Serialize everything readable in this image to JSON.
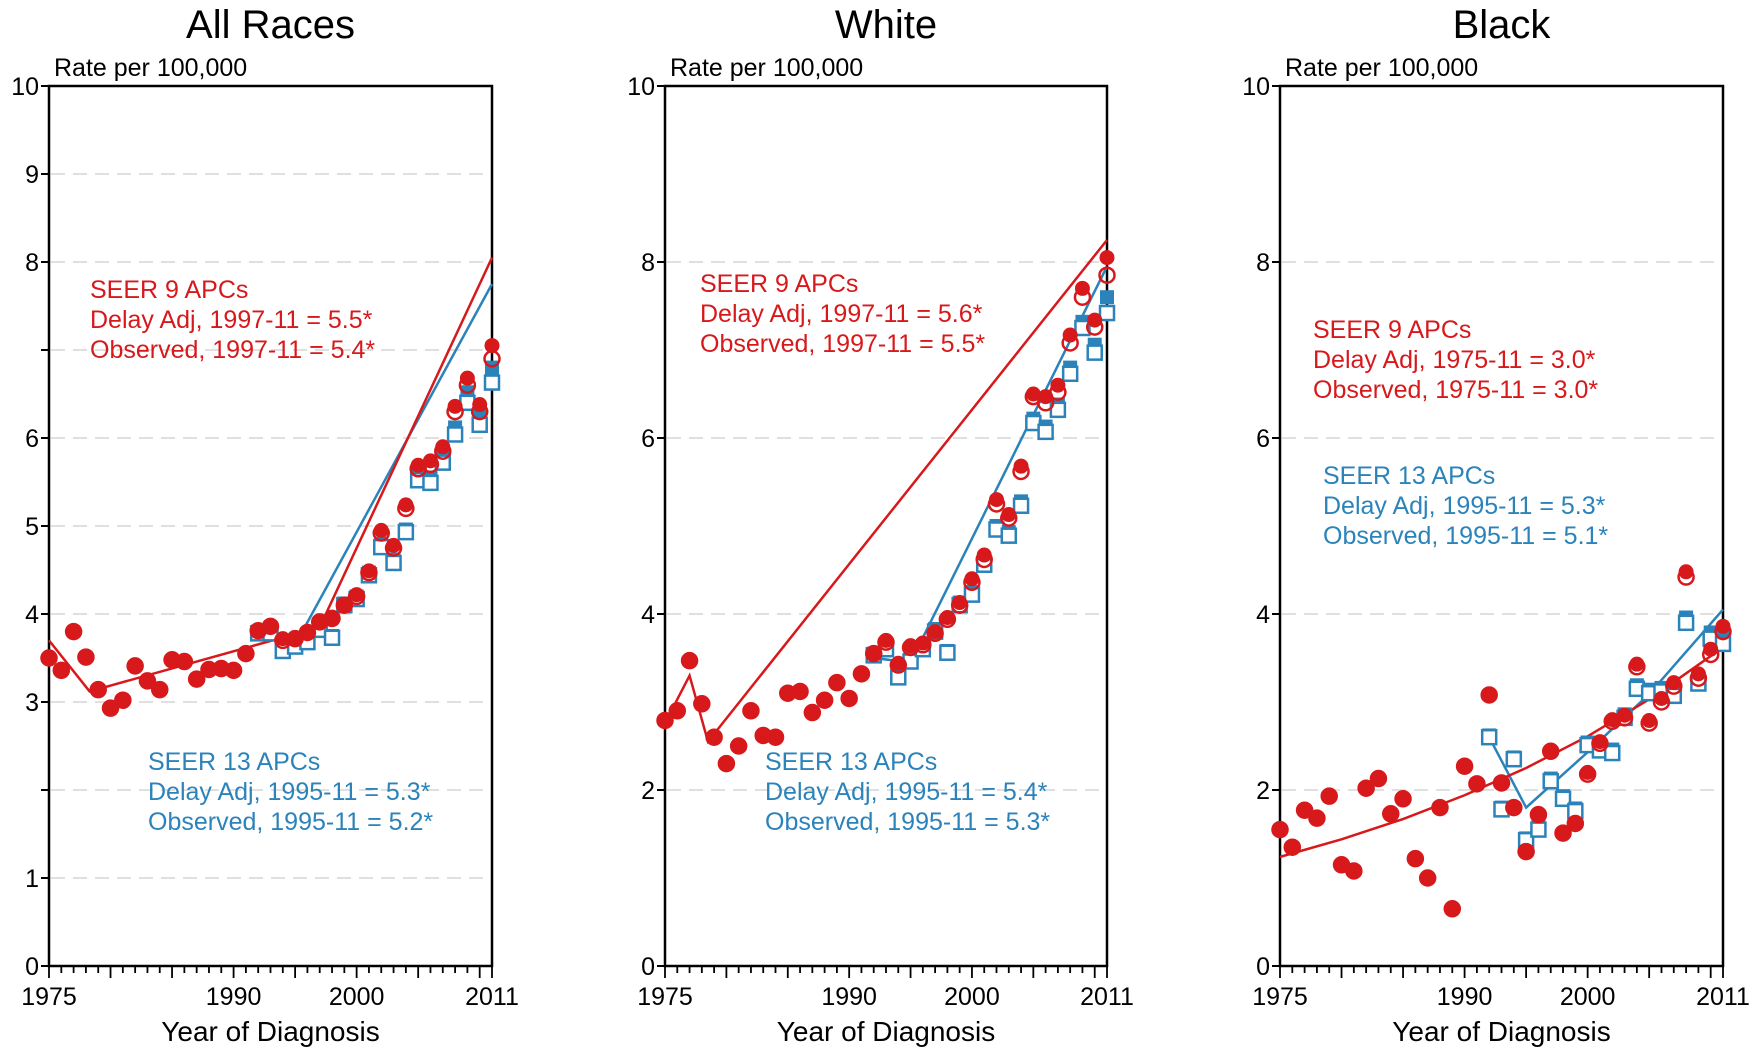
{
  "colors": {
    "seer9": "#d7191c",
    "seer13": "#2b83ba",
    "axis": "#000000",
    "grid": "#e0e0e0"
  },
  "chart_data": [
    {
      "type": "scatter",
      "title": "All Races",
      "ylabel": "Rate per 100,000",
      "xlabel": "Year of Diagnosis",
      "xlim": [
        1975,
        2011
      ],
      "ylim": [
        0,
        10
      ],
      "xticks": [
        1975,
        1990,
        2000,
        2011
      ],
      "yticks": [
        0,
        1,
        2,
        3,
        4,
        5,
        6,
        7,
        8,
        9,
        10
      ],
      "ytick_labels": [
        "0",
        "1",
        "",
        "3",
        "4",
        "5",
        "6",
        "",
        "8",
        "9",
        "10"
      ],
      "grid": true,
      "annotations": [
        {
          "group": "seer9",
          "lines": [
            "SEER 9 APCs",
            "Delay Adj, 1997-11 = 5.5*",
            "Observed, 1997-11 = 5.4*"
          ]
        },
        {
          "group": "seer13",
          "lines": [
            "SEER 13 APCs",
            "Delay Adj, 1995-11 = 5.3*",
            "Observed, 1995-11 = 5.2*"
          ]
        }
      ],
      "seer9_x": [
        1975,
        1976,
        1977,
        1978,
        1979,
        1980,
        1981,
        1982,
        1983,
        1984,
        1985,
        1986,
        1987,
        1988,
        1989,
        1990,
        1991,
        1992,
        1993,
        1994,
        1995,
        1996,
        1997,
        1998,
        1999,
        2000,
        2001,
        2002,
        2003,
        2004,
        2005,
        2006,
        2007,
        2008,
        2009,
        2010,
        2011
      ],
      "seer9_observed": [
        3.5,
        3.36,
        3.8,
        3.51,
        3.14,
        2.93,
        3.02,
        3.41,
        3.24,
        3.14,
        3.48,
        3.46,
        3.26,
        3.37,
        3.38,
        3.36,
        3.55,
        3.81,
        3.86,
        3.7,
        3.72,
        3.79,
        3.91,
        3.95,
        4.1,
        4.2,
        4.47,
        4.92,
        4.75,
        5.2,
        5.65,
        5.7,
        5.85,
        6.3,
        6.6,
        6.3,
        6.9
      ],
      "seer9_delay_adj": [
        3.5,
        3.36,
        3.8,
        3.51,
        3.14,
        2.93,
        3.02,
        3.41,
        3.24,
        3.14,
        3.48,
        3.46,
        3.26,
        3.37,
        3.38,
        3.36,
        3.55,
        3.81,
        3.86,
        3.72,
        3.73,
        3.8,
        3.92,
        3.96,
        4.11,
        4.22,
        4.49,
        4.95,
        4.78,
        5.24,
        5.69,
        5.74,
        5.9,
        6.36,
        6.68,
        6.38,
        7.05
      ],
      "seer9_fit": {
        "x": [
          1975,
          1978.3,
          1997,
          2011
        ],
        "y": [
          3.7,
          3.12,
          3.85,
          8.05
        ]
      },
      "seer13_x": [
        1992,
        1993,
        1994,
        1995,
        1996,
        1997,
        1998,
        1999,
        2000,
        2001,
        2002,
        2003,
        2004,
        2005,
        2006,
        2007,
        2008,
        2009,
        2010,
        2011
      ],
      "seer13_observed": [
        3.78,
        3.78,
        3.58,
        3.63,
        3.68,
        3.82,
        3.73,
        4.1,
        4.17,
        4.44,
        4.76,
        4.58,
        4.93,
        5.52,
        5.49,
        5.72,
        6.04,
        6.4,
        6.15,
        6.63
      ],
      "seer13_delay_adj": [
        3.8,
        3.8,
        3.62,
        3.66,
        3.72,
        3.86,
        3.75,
        4.12,
        4.2,
        4.47,
        4.8,
        4.62,
        4.96,
        5.57,
        5.55,
        5.8,
        6.12,
        6.52,
        6.27,
        6.8
      ],
      "seer13_fit": {
        "x": [
          1992,
          1995,
          2011
        ],
        "y": [
          3.75,
          3.65,
          7.75
        ]
      }
    },
    {
      "type": "scatter",
      "title": "White",
      "ylabel": "Rate per 100,000",
      "xlabel": "Year of Diagnosis",
      "xlim": [
        1975,
        2011
      ],
      "ylim": [
        0,
        10
      ],
      "xticks": [
        1975,
        1990,
        2000,
        2011
      ],
      "yticks": [
        0,
        2,
        4,
        6,
        8,
        10
      ],
      "ytick_labels": [
        "0",
        "2",
        "4",
        "6",
        "8",
        "10"
      ],
      "grid": true,
      "annotations": [
        {
          "group": "seer9",
          "lines": [
            "SEER 9 APCs",
            "Delay Adj, 1997-11 = 5.6*",
            "Observed, 1997-11 = 5.5*"
          ]
        },
        {
          "group": "seer13",
          "lines": [
            "SEER 13 APCs",
            "Delay Adj, 1995-11 = 5.4*",
            "Observed, 1995-11 = 5.3*"
          ]
        }
      ],
      "seer9_x": [
        1975,
        1976,
        1977,
        1978,
        1979,
        1980,
        1981,
        1982,
        1983,
        1984,
        1985,
        1986,
        1987,
        1988,
        1989,
        1990,
        1991,
        1992,
        1993,
        1994,
        1995,
        1996,
        1997,
        1998,
        1999,
        2000,
        2001,
        2002,
        2003,
        2004,
        2005,
        2006,
        2007,
        2008,
        2009,
        2010,
        2011
      ],
      "seer9_observed": [
        2.79,
        2.9,
        3.47,
        2.98,
        2.6,
        2.3,
        2.5,
        2.9,
        2.62,
        2.6,
        3.1,
        3.12,
        2.88,
        3.02,
        3.22,
        3.04,
        3.32,
        3.55,
        3.68,
        3.42,
        3.62,
        3.65,
        3.78,
        3.94,
        4.1,
        4.36,
        4.62,
        5.25,
        5.09,
        5.62,
        6.47,
        6.4,
        6.52,
        7.08,
        7.6,
        7.26,
        7.85
      ],
      "seer9_delay_adj": [
        2.79,
        2.9,
        3.47,
        2.98,
        2.6,
        2.3,
        2.5,
        2.9,
        2.62,
        2.6,
        3.1,
        3.12,
        2.88,
        3.02,
        3.22,
        3.04,
        3.32,
        3.56,
        3.7,
        3.44,
        3.64,
        3.67,
        3.8,
        3.96,
        4.13,
        4.4,
        4.67,
        5.3,
        5.13,
        5.68,
        6.5,
        6.47,
        6.6,
        7.17,
        7.7,
        7.34,
        8.05
      ],
      "seer9_fit": {
        "x": [
          1975,
          1977,
          1978.5,
          2011
        ],
        "y": [
          2.76,
          3.3,
          2.55,
          8.25
        ]
      },
      "seer13_x": [
        1992,
        1993,
        1994,
        1995,
        1996,
        1997,
        1998,
        1999,
        2000,
        2001,
        2002,
        2003,
        2004,
        2005,
        2006,
        2007,
        2008,
        2009,
        2010,
        2011
      ],
      "seer13_observed": [
        3.53,
        3.6,
        3.28,
        3.46,
        3.6,
        3.8,
        3.56,
        4.1,
        4.22,
        4.56,
        4.96,
        4.89,
        5.23,
        6.17,
        6.07,
        6.32,
        6.73,
        7.25,
        6.97,
        7.42
      ],
      "seer13_delay_adj": [
        3.55,
        3.62,
        3.31,
        3.49,
        3.63,
        3.83,
        3.58,
        4.13,
        4.25,
        4.6,
        5.0,
        4.93,
        5.28,
        6.22,
        6.13,
        6.38,
        6.8,
        7.32,
        7.06,
        7.6
      ],
      "seer13_fit": {
        "x": [
          1992,
          1995,
          2011
        ],
        "y": [
          3.5,
          3.45,
          7.95
        ]
      }
    },
    {
      "type": "scatter",
      "title": "Black",
      "ylabel": "Rate per 100,000",
      "xlabel": "Year of Diagnosis",
      "xlim": [
        1975,
        2011
      ],
      "ylim": [
        0,
        10
      ],
      "xticks": [
        1975,
        1990,
        2000,
        2011
      ],
      "yticks": [
        0,
        2,
        4,
        6,
        8,
        10
      ],
      "ytick_labels": [
        "0",
        "2",
        "4",
        "6",
        "8",
        "10"
      ],
      "grid": true,
      "annotations": [
        {
          "group": "seer9",
          "lines": [
            "SEER 9 APCs",
            "Delay Adj, 1975-11 = 3.0*",
            "Observed, 1975-11 = 3.0*"
          ]
        },
        {
          "group": "seer13",
          "lines": [
            "SEER 13 APCs",
            "Delay Adj, 1995-11 = 5.3*",
            "Observed, 1995-11 = 5.1*"
          ]
        }
      ],
      "seer9_x": [
        1975,
        1976,
        1977,
        1978,
        1979,
        1980,
        1981,
        1982,
        1983,
        1984,
        1985,
        1986,
        1987,
        1988,
        1989,
        1990,
        1991,
        1992,
        1993,
        1994,
        1995,
        1996,
        1997,
        1998,
        1999,
        2000,
        2001,
        2002,
        2003,
        2004,
        2005,
        2006,
        2007,
        2008,
        2009,
        2010,
        2011
      ],
      "seer9_observed": [
        1.55,
        1.35,
        1.77,
        1.68,
        1.93,
        1.15,
        1.08,
        2.02,
        2.13,
        1.73,
        1.9,
        1.22,
        1.0,
        1.8,
        0.65,
        2.27,
        2.07,
        3.08,
        2.08,
        1.8,
        1.3,
        1.72,
        2.44,
        1.51,
        1.62,
        2.18,
        2.53,
        2.78,
        2.82,
        3.4,
        2.76,
        3.0,
        3.18,
        4.42,
        3.27,
        3.54,
        3.8
      ],
      "seer9_delay_adj": [
        1.55,
        1.35,
        1.77,
        1.68,
        1.93,
        1.15,
        1.08,
        2.02,
        2.13,
        1.73,
        1.9,
        1.22,
        1.0,
        1.8,
        0.65,
        2.27,
        2.07,
        3.08,
        2.08,
        1.81,
        1.31,
        1.73,
        2.45,
        1.52,
        1.63,
        2.2,
        2.55,
        2.8,
        2.85,
        3.43,
        2.79,
        3.04,
        3.22,
        4.48,
        3.32,
        3.6,
        3.86
      ],
      "seer9_fit": {
        "x": [
          1975,
          1980,
          1985,
          1990,
          1995,
          2000,
          2005,
          2011
        ],
        "y": [
          1.24,
          1.44,
          1.67,
          1.94,
          2.25,
          2.61,
          3.03,
          3.62
        ]
      },
      "seer13_x": [
        1992,
        1993,
        1994,
        1995,
        1996,
        1997,
        1998,
        1999,
        2000,
        2001,
        2002,
        2003,
        2004,
        2005,
        2006,
        2007,
        2008,
        2009,
        2010,
        2011
      ],
      "seer13_observed": [
        2.6,
        1.78,
        2.35,
        1.43,
        1.55,
        2.1,
        1.9,
        1.76,
        2.51,
        2.45,
        2.42,
        2.82,
        3.15,
        3.1,
        3.12,
        3.07,
        3.9,
        3.21,
        3.72,
        3.66
      ],
      "seer13_delay_adj": [
        2.62,
        1.8,
        2.37,
        1.45,
        1.58,
        2.13,
        1.93,
        1.79,
        2.54,
        2.48,
        2.46,
        2.86,
        3.19,
        3.14,
        3.16,
        3.12,
        3.96,
        3.27,
        3.79,
        3.75
      ],
      "seer13_fit": {
        "x": [
          1992,
          1995,
          2000,
          2005,
          2011
        ],
        "y": [
          2.6,
          1.8,
          2.43,
          3.09,
          4.05
        ]
      }
    }
  ]
}
